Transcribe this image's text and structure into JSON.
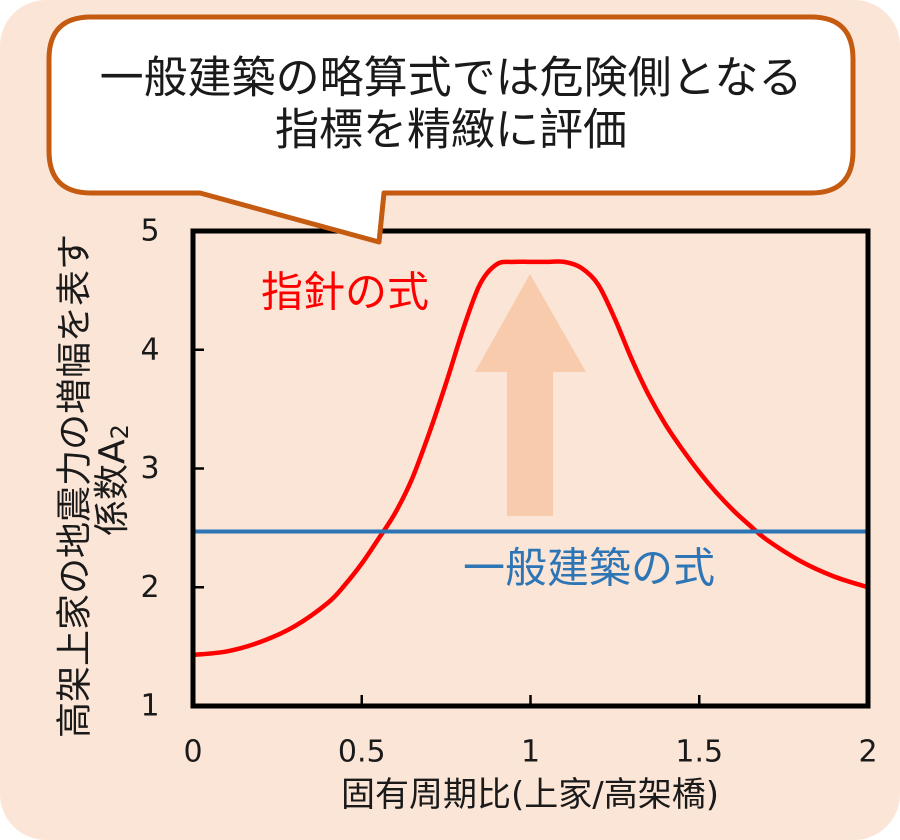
{
  "colors": {
    "background": "#fbe5d6",
    "callout_border": "#c55a11",
    "callout_fill": "#ffffff",
    "arrow": "#f8cbad",
    "frame": "#000000"
  },
  "icons": {
    "arrow": "up-arrow-icon"
  },
  "callout": {
    "line1": "一般建築の略算式では危険側となる",
    "line2": "指標を精緻に評価"
  },
  "chart_data": {
    "type": "line",
    "xlabel": "固有周期比(上家/高架橋)",
    "ylabel": {
      "line1": "高架上家の地震力の増幅を表す",
      "line2": "係数A",
      "subscript": "2"
    },
    "xlim": [
      0,
      2
    ],
    "ylim": [
      1,
      5
    ],
    "xticks": [
      "0",
      "0.5",
      "1",
      "1.5",
      "2"
    ],
    "yticks": [
      "1",
      "2",
      "3",
      "4",
      "5"
    ],
    "grid": false,
    "series": [
      {
        "name": "指針の式",
        "color": "#ff0000",
        "x": [
          0,
          0.1,
          0.2,
          0.3,
          0.4,
          0.45,
          0.5,
          0.55,
          0.6,
          0.65,
          0.7,
          0.75,
          0.8,
          0.85,
          0.9,
          0.95,
          1.0,
          1.05,
          1.1,
          1.15,
          1.2,
          1.25,
          1.3,
          1.35,
          1.4,
          1.45,
          1.5,
          1.55,
          1.6,
          1.65,
          1.7,
          1.8,
          1.9,
          2.0
        ],
        "y": [
          1.43,
          1.46,
          1.54,
          1.67,
          1.87,
          2.02,
          2.2,
          2.41,
          2.63,
          2.92,
          3.3,
          3.72,
          4.17,
          4.55,
          4.72,
          4.74,
          4.74,
          4.74,
          4.74,
          4.69,
          4.55,
          4.26,
          3.92,
          3.62,
          3.37,
          3.16,
          2.97,
          2.8,
          2.65,
          2.52,
          2.4,
          2.22,
          2.09,
          2.0
        ]
      },
      {
        "name": "一般建築の式",
        "color": "#2e75b6",
        "x": [
          0,
          2
        ],
        "y": [
          2.47,
          2.47
        ]
      }
    ]
  }
}
